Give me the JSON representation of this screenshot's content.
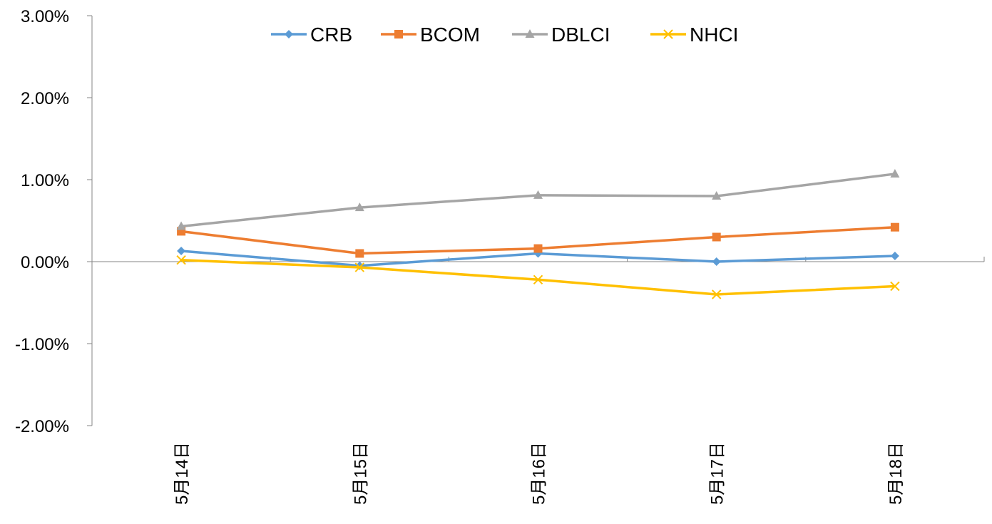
{
  "chart_data": {
    "type": "line",
    "categories": [
      "5月14日",
      "5月15日",
      "5月16日",
      "5月17日",
      "5月18日"
    ],
    "series": [
      {
        "name": "CRB",
        "color": "#5B9BD5",
        "marker": "diamond",
        "values": [
          0.13,
          -0.05,
          0.1,
          0.0,
          0.07
        ]
      },
      {
        "name": "BCOM",
        "color": "#ED7D31",
        "marker": "square",
        "values": [
          0.37,
          0.1,
          0.16,
          0.3,
          0.42
        ]
      },
      {
        "name": "DBLCI",
        "color": "#A5A5A5",
        "marker": "triangle",
        "values": [
          0.43,
          0.66,
          0.81,
          0.8,
          1.07
        ]
      },
      {
        "name": "NHCI",
        "color": "#FFC000",
        "marker": "x",
        "values": [
          0.02,
          -0.07,
          -0.22,
          -0.4,
          -0.3
        ]
      }
    ],
    "y_ticks": [
      "3.00%",
      "2.00%",
      "1.00%",
      "0.00%",
      "-1.00%",
      "-2.00%"
    ],
    "ylim": [
      -2.0,
      3.0
    ],
    "y_unit": "percent",
    "grid": false,
    "legend_position": "top-center",
    "x_label_orientation": "rotated-vertical"
  }
}
